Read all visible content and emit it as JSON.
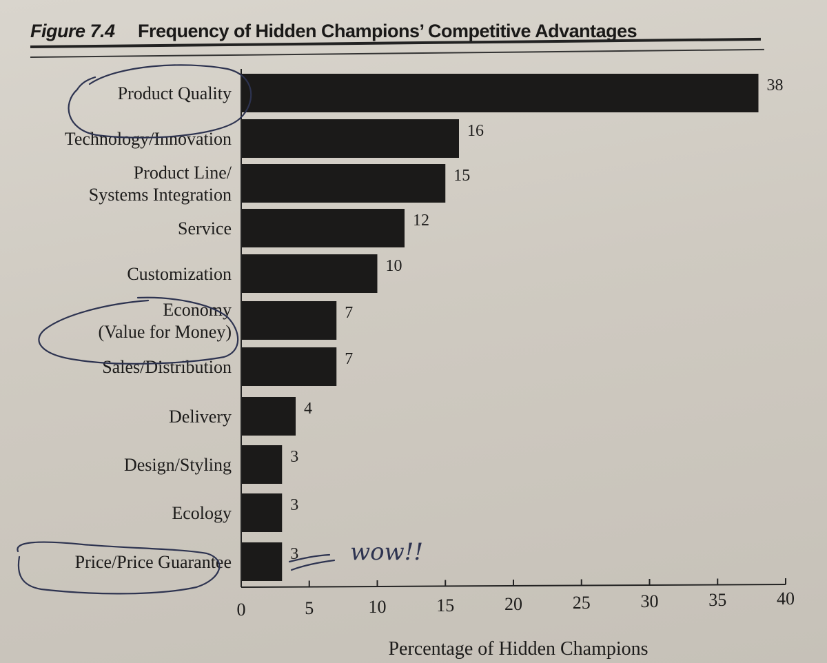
{
  "figure": {
    "label": "Figure 7.4",
    "title": "Frequency of Hidden Champions’ Competitive Advantages"
  },
  "chart_data": {
    "type": "bar",
    "orientation": "horizontal",
    "categories": [
      [
        "Product Quality"
      ],
      [
        "Technology/Innovation"
      ],
      [
        "Product Line/",
        "Systems Integration"
      ],
      [
        "Service"
      ],
      [
        "Customization"
      ],
      [
        "Economy",
        "(Value for Money)"
      ],
      [
        "Sales/Distribution"
      ],
      [
        "Delivery"
      ],
      [
        "Design/Styling"
      ],
      [
        "Ecology"
      ],
      [
        "Price/Price Guarantee"
      ]
    ],
    "values": [
      38,
      16,
      15,
      12,
      10,
      7,
      7,
      4,
      3,
      3,
      3
    ],
    "xlabel": "Percentage of Hidden Champions",
    "xlim": [
      0,
      40
    ],
    "xticks": [
      0,
      5,
      10,
      15,
      20,
      25,
      30,
      35,
      40
    ],
    "grid": false,
    "bar_color": "#1b1a19"
  },
  "annotations": {
    "handwritten_note": "wow!!",
    "circled_categories": [
      "Product Quality",
      "Economy (Value for Money)",
      "Price/Price Guarantee"
    ]
  }
}
